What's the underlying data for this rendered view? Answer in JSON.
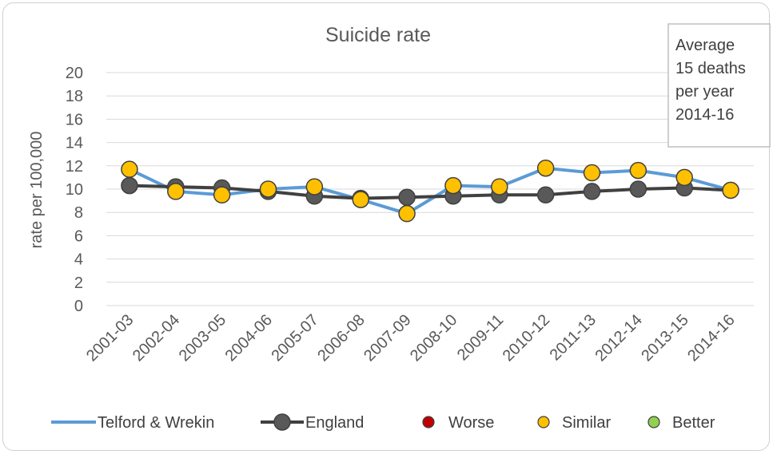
{
  "chart_data": {
    "type": "line",
    "title": "Suicide rate",
    "xlabel": "",
    "ylabel": "rate per 100,000",
    "ylim": [
      0,
      20
    ],
    "yticks": [
      "0",
      "2",
      "4",
      "6",
      "8",
      "10",
      "12",
      "14",
      "16",
      "18",
      "20"
    ],
    "grid": true,
    "categories": [
      "2001-03",
      "2002-04",
      "2003-05",
      "2004-06",
      "2005-07",
      "2006-08",
      "2007-09",
      "2008-10",
      "2009-11",
      "2010-12",
      "2011-13",
      "2012-14",
      "2013-15",
      "2014-16"
    ],
    "series": [
      {
        "name": "Telford & Wrekin",
        "color": "#5b9bd5",
        "values": [
          11.7,
          9.8,
          9.5,
          10.0,
          10.2,
          9.1,
          7.9,
          10.3,
          10.2,
          11.8,
          11.4,
          11.6,
          11.0,
          9.9
        ]
      },
      {
        "name": "England",
        "color": "#404040",
        "values": [
          10.3,
          10.2,
          10.1,
          9.8,
          9.4,
          9.2,
          9.3,
          9.4,
          9.5,
          9.5,
          9.8,
          10.0,
          10.1,
          9.9
        ]
      }
    ],
    "significance": {
      "legend": [
        {
          "label": "Worse",
          "color": "#c00000"
        },
        {
          "label": "Similar",
          "color": "#ffc000"
        },
        {
          "label": "Better",
          "color": "#92d050"
        }
      ],
      "telford_markers": [
        "Similar",
        "Similar",
        "Similar",
        "Similar",
        "Similar",
        "Similar",
        "Similar",
        "Similar",
        "Similar",
        "Similar",
        "Similar",
        "Similar",
        "Similar",
        "Similar"
      ]
    },
    "annotation": {
      "lines": [
        "Average",
        "15 deaths",
        "per year",
        "2014-16"
      ]
    }
  }
}
